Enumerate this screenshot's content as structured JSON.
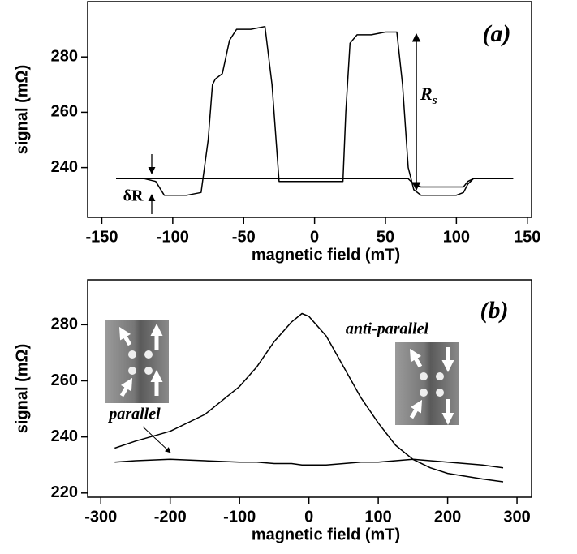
{
  "chart_data": [
    {
      "type": "line",
      "xlabel": "magnetic field (mT)",
      "ylabel": "signal (mΩ)",
      "x": [
        -140,
        -120,
        -112,
        -106,
        -100,
        -90,
        -80,
        -75,
        -72,
        -70,
        -65,
        -60,
        -55,
        -45,
        -35,
        -30,
        -25,
        -20,
        0,
        20,
        22,
        25,
        30,
        40,
        50,
        58,
        62,
        66,
        70,
        75,
        80,
        90,
        100,
        105,
        108,
        112,
        120,
        140
      ],
      "series": [
        {
          "color": "#000000",
          "values": [
            236,
            236,
            235,
            230,
            230,
            230,
            231,
            250,
            270,
            272,
            274,
            286,
            290,
            290,
            291,
            270,
            235,
            235,
            235,
            235,
            260,
            285,
            288,
            288,
            289,
            289,
            270,
            240,
            232,
            230,
            230,
            230,
            230,
            231,
            234,
            236,
            236,
            236
          ]
        },
        {
          "color": "#000000",
          "values": [
            236,
            236,
            236,
            236,
            236,
            236,
            236,
            236,
            236,
            236,
            236,
            236,
            236,
            236,
            236,
            236,
            236,
            236,
            236,
            236,
            236,
            236,
            236,
            236,
            236,
            236,
            236,
            236,
            234,
            233,
            233,
            233,
            233,
            233,
            235,
            236,
            236,
            236
          ]
        }
      ],
      "xlim": [
        -160,
        153
      ],
      "ylim": [
        222,
        300
      ],
      "xticks": [
        -150,
        -100,
        -50,
        0,
        50,
        100,
        150
      ],
      "yticks": [
        240,
        260,
        280
      ],
      "annotations": {
        "panel": "(a)",
        "rs": "R",
        "rs_sub": "s",
        "delta_r": "δR"
      }
    },
    {
      "type": "line",
      "xlabel": "magnetic field (mT)",
      "ylabel": "signal (mΩ)",
      "x": [
        -280,
        -250,
        -200,
        -150,
        -100,
        -75,
        -50,
        -25,
        -10,
        0,
        25,
        50,
        75,
        100,
        125,
        150,
        175,
        200,
        250,
        280
      ],
      "series": [
        {
          "color": "#000000",
          "values": [
            236,
            238.5,
            242,
            248,
            258,
            265,
            274,
            281,
            284,
            283,
            276,
            265,
            254,
            245,
            237,
            232,
            229,
            227,
            225,
            224
          ]
        },
        {
          "color": "#000000",
          "values": [
            231,
            231.5,
            232,
            231.5,
            231,
            231,
            230.5,
            230.5,
            230,
            230,
            230,
            230.5,
            231,
            231,
            231.5,
            232,
            231.5,
            231,
            230,
            229
          ]
        }
      ],
      "xlim": [
        -319,
        321
      ],
      "ylim": [
        218.5,
        296
      ],
      "xticks": [
        -300,
        -200,
        -100,
        0,
        100,
        200,
        300
      ],
      "yticks": [
        220,
        240,
        260,
        280
      ],
      "annotations": {
        "panel": "(b)",
        "anti_parallel": "anti-parallel",
        "parallel": "parallel"
      }
    }
  ]
}
